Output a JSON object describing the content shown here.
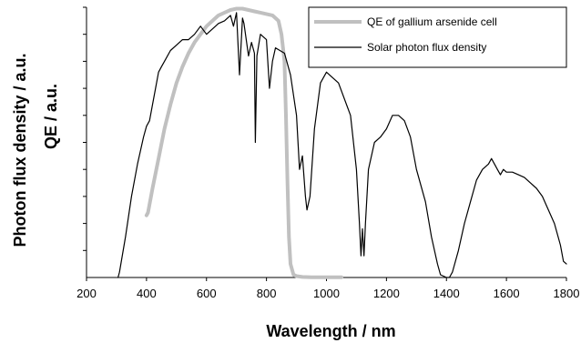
{
  "chart_data": {
    "type": "line",
    "xlabel": "Wavelength / nm",
    "ylabel_lines": [
      "Photon flux density / a.u.",
      "QE / a.u."
    ],
    "xlim": [
      200,
      1800
    ],
    "ylim": [
      0,
      1
    ],
    "x_ticks": [
      200,
      400,
      600,
      800,
      1000,
      1200,
      1400,
      1600,
      1800
    ],
    "y_tick_count": 10,
    "y_tick_labels_shown": false,
    "grid": false,
    "legend_position": "top-right",
    "series": [
      {
        "name": "QE of gallium arsenide cell",
        "color": "#c0c0c0",
        "style": "thick",
        "x": [
          400,
          405,
          420,
          440,
          460,
          480,
          500,
          520,
          540,
          560,
          580,
          600,
          620,
          640,
          660,
          680,
          700,
          720,
          740,
          760,
          780,
          800,
          820,
          840,
          850,
          860,
          865,
          870,
          875,
          880,
          890,
          900,
          920,
          950,
          1000,
          1050
        ],
        "y": [
          0.23,
          0.24,
          0.33,
          0.44,
          0.55,
          0.64,
          0.72,
          0.78,
          0.83,
          0.87,
          0.9,
          0.93,
          0.95,
          0.97,
          0.98,
          0.99,
          0.995,
          0.995,
          0.99,
          0.985,
          0.98,
          0.975,
          0.97,
          0.95,
          0.9,
          0.8,
          0.6,
          0.35,
          0.15,
          0.05,
          0.01,
          0.005,
          0.002,
          0.001,
          0.001,
          0.001
        ]
      },
      {
        "name": "Solar photon flux density",
        "color": "#000000",
        "style": "thin",
        "x": [
          305,
          310,
          330,
          350,
          370,
          390,
          400,
          410,
          420,
          430,
          440,
          450,
          460,
          480,
          500,
          520,
          540,
          560,
          580,
          600,
          620,
          640,
          660,
          680,
          690,
          700,
          710,
          720,
          725,
          740,
          750,
          760,
          763,
          768,
          780,
          800,
          810,
          820,
          830,
          860,
          880,
          900,
          910,
          920,
          930,
          935,
          945,
          960,
          980,
          1000,
          1040,
          1080,
          1100,
          1110,
          1115,
          1120,
          1125,
          1130,
          1140,
          1160,
          1180,
          1200,
          1220,
          1240,
          1260,
          1280,
          1300,
          1330,
          1350,
          1370,
          1380,
          1400,
          1410,
          1420,
          1440,
          1460,
          1480,
          1500,
          1520,
          1540,
          1550,
          1560,
          1570,
          1580,
          1590,
          1600,
          1620,
          1640,
          1660,
          1680,
          1700,
          1720,
          1740,
          1760,
          1780,
          1790,
          1800
        ],
        "y": [
          0.0,
          0.02,
          0.15,
          0.3,
          0.42,
          0.52,
          0.56,
          0.58,
          0.64,
          0.7,
          0.76,
          0.78,
          0.8,
          0.84,
          0.86,
          0.88,
          0.88,
          0.9,
          0.93,
          0.9,
          0.92,
          0.94,
          0.95,
          0.97,
          0.93,
          0.98,
          0.75,
          0.96,
          0.94,
          0.82,
          0.87,
          0.83,
          0.5,
          0.82,
          0.9,
          0.88,
          0.7,
          0.8,
          0.85,
          0.83,
          0.75,
          0.6,
          0.4,
          0.45,
          0.3,
          0.25,
          0.3,
          0.55,
          0.72,
          0.76,
          0.72,
          0.6,
          0.4,
          0.2,
          0.08,
          0.18,
          0.08,
          0.2,
          0.4,
          0.5,
          0.52,
          0.55,
          0.6,
          0.6,
          0.58,
          0.52,
          0.4,
          0.28,
          0.15,
          0.05,
          0.01,
          0.0,
          0.0,
          0.02,
          0.1,
          0.2,
          0.28,
          0.36,
          0.4,
          0.42,
          0.44,
          0.42,
          0.4,
          0.38,
          0.4,
          0.39,
          0.39,
          0.38,
          0.37,
          0.35,
          0.33,
          0.3,
          0.25,
          0.2,
          0.12,
          0.06,
          0.05
        ]
      }
    ]
  }
}
